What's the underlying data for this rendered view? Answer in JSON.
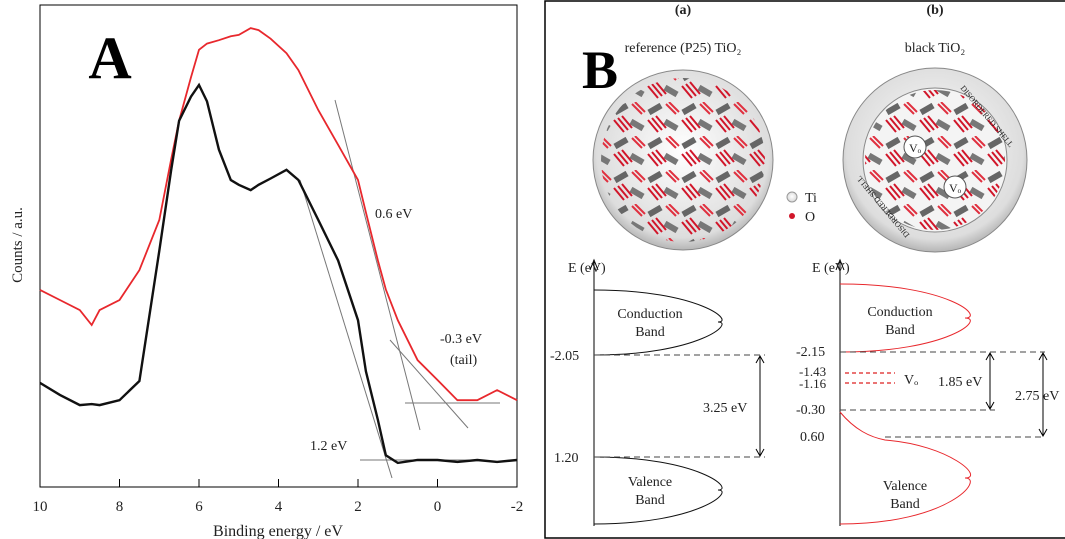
{
  "chart_data": {
    "type": "line",
    "panel_label": "A",
    "x_label": "Binding energy / eV",
    "y_label": "Counts / a.u.",
    "x": [
      10,
      9.5,
      9,
      8.7,
      8.5,
      8,
      7.5,
      7,
      6.7,
      6.5,
      6.2,
      6,
      5.8,
      5.5,
      5.2,
      5,
      4.7,
      4.5,
      4.2,
      3.8,
      3.5,
      3,
      2.5,
      2,
      1.8,
      1.5,
      1.3,
      1,
      0.5,
      0,
      -0.5,
      -1,
      -1.5,
      -2
    ],
    "series": [
      {
        "color": "#e8282d",
        "values": [
          40.9,
          38.8,
          36.7,
          33.6,
          36.7,
          38.8,
          45,
          55.4,
          68,
          76,
          85,
          90.7,
          92,
          92.7,
          93.5,
          93.8,
          95.2,
          94.8,
          93,
          90,
          86.5,
          78.2,
          71,
          63.7,
          57,
          47,
          41,
          34.6,
          26.3,
          22.2,
          18,
          18,
          20.1,
          18
        ]
      },
      {
        "color": "#111111",
        "values": [
          21.6,
          19.1,
          17,
          17.2,
          17,
          18,
          22,
          49,
          65.8,
          76,
          81,
          83.4,
          80,
          70,
          63.7,
          62.7,
          61.6,
          62.7,
          64,
          65.8,
          63.7,
          55.4,
          47,
          34.6,
          24,
          13.9,
          6.6,
          5,
          5.6,
          5.6,
          5.2,
          5.6,
          5.2,
          5.6
        ]
      }
    ],
    "xlim": [
      10,
      -2
    ],
    "xticks": [
      10,
      8,
      6,
      4,
      2,
      0,
      -2
    ],
    "ylim": [
      0,
      100
    ],
    "annotations": [
      "0.6 eV",
      "-0.3 eV",
      "(tail)",
      "1.2 eV"
    ]
  },
  "diagram": {
    "panel_label": "B",
    "a_label": "(a)",
    "b_label": "(b)",
    "a_title": "reference (P25) TiO₂",
    "b_title": "black TiO₂",
    "shell_label": "DISORDERED SHELL",
    "vacancy": "Vₒ",
    "legend_ti": "Ti",
    "legend_o": "O",
    "energy_axis": "E (eV)",
    "conduction": [
      "Conduction",
      "Band"
    ],
    "valence": [
      "Valence",
      "Band"
    ],
    "a_levels": [
      "-2.05",
      "1.20"
    ],
    "a_gap": "3.25 eV",
    "b_levels": [
      "-2.15",
      "-1.43",
      "-1.16",
      "-0.30",
      "0.60"
    ],
    "b_gaps": [
      "1.85 eV",
      "2.75 eV"
    ]
  }
}
